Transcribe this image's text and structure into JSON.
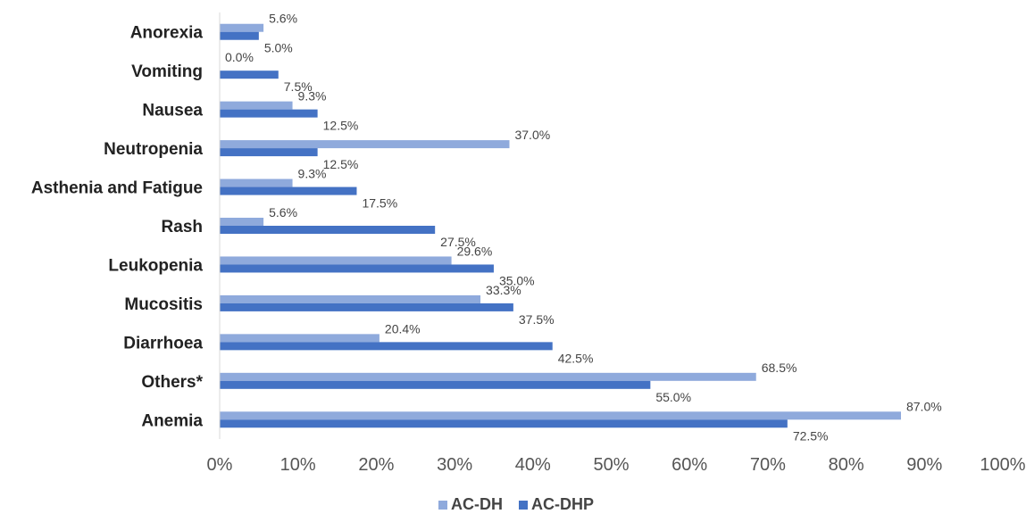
{
  "chart_data": {
    "type": "bar",
    "orientation": "horizontal",
    "categories": [
      "Anorexia",
      "Vomiting",
      "Nausea",
      "Neutropenia",
      "Asthenia and Fatigue",
      "Rash",
      "Leukopenia",
      "Mucositis",
      "Diarrhoea",
      "Others*",
      "Anemia"
    ],
    "series": [
      {
        "name": "AC-DH",
        "color": "#8FAADC",
        "values": [
          5.6,
          0.0,
          9.3,
          37.0,
          9.3,
          5.6,
          29.6,
          33.3,
          20.4,
          68.5,
          87.0
        ],
        "labels": [
          "5.6%",
          "0.0%",
          "9.3%",
          "37.0%",
          "9.3%",
          "5.6%",
          "29.6%",
          "33.3%",
          "20.4%",
          "68.5%",
          "87.0%"
        ]
      },
      {
        "name": "AC-DHP",
        "color": "#4472C4",
        "values": [
          5.0,
          7.5,
          12.5,
          12.5,
          17.5,
          27.5,
          35.0,
          37.5,
          42.5,
          55.0,
          72.5
        ],
        "labels": [
          "5.0%",
          "7.5%",
          "12.5%",
          "12.5%",
          "17.5%",
          "27.5%",
          "35.0%",
          "37.5%",
          "42.5%",
          "55.0%",
          "72.5%"
        ]
      }
    ],
    "xlim": [
      0,
      100
    ],
    "x_ticks": [
      "0%",
      "10%",
      "20%",
      "30%",
      "40%",
      "50%",
      "60%",
      "70%",
      "80%",
      "90%",
      "100%"
    ],
    "title": "",
    "xlabel": "",
    "ylabel": "",
    "legend_position": "bottom",
    "grid": false
  }
}
